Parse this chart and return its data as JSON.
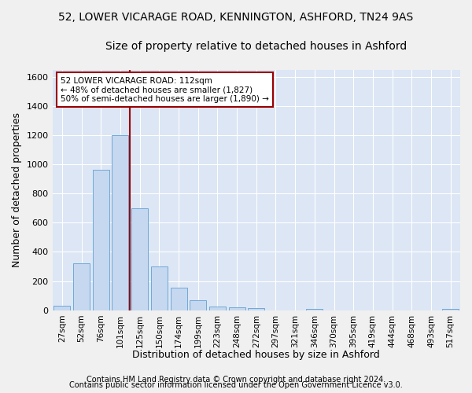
{
  "title": "52, LOWER VICARAGE ROAD, KENNINGTON, ASHFORD, TN24 9AS",
  "subtitle": "Size of property relative to detached houses in Ashford",
  "xlabel": "Distribution of detached houses by size in Ashford",
  "ylabel": "Number of detached properties",
  "bar_labels": [
    "27sqm",
    "52sqm",
    "76sqm",
    "101sqm",
    "125sqm",
    "150sqm",
    "174sqm",
    "199sqm",
    "223sqm",
    "248sqm",
    "272sqm",
    "297sqm",
    "321sqm",
    "346sqm",
    "370sqm",
    "395sqm",
    "419sqm",
    "444sqm",
    "468sqm",
    "493sqm",
    "517sqm"
  ],
  "bar_values": [
    30,
    320,
    965,
    1200,
    700,
    300,
    155,
    70,
    28,
    18,
    15,
    0,
    0,
    12,
    0,
    0,
    0,
    0,
    0,
    0,
    12
  ],
  "bar_color": "#c5d8f0",
  "bar_edge_color": "#6fa8d6",
  "vline_x": 3.5,
  "vline_color": "#990000",
  "annotation_lines": [
    "52 LOWER VICARAGE ROAD: 112sqm",
    "← 48% of detached houses are smaller (1,827)",
    "50% of semi-detached houses are larger (1,890) →"
  ],
  "annotation_box_color": "#990000",
  "ylim": [
    0,
    1650
  ],
  "yticks": [
    0,
    200,
    400,
    600,
    800,
    1000,
    1200,
    1400,
    1600
  ],
  "footer_line1": "Contains HM Land Registry data © Crown copyright and database right 2024.",
  "footer_line2": "Contains public sector information licensed under the Open Government Licence v3.0.",
  "bg_color": "#dce6f5",
  "grid_color": "#ffffff",
  "fig_bg_color": "#f0f0f0",
  "title_fontsize": 10,
  "subtitle_fontsize": 10,
  "axis_label_fontsize": 9,
  "tick_fontsize": 8,
  "footer_fontsize": 7
}
